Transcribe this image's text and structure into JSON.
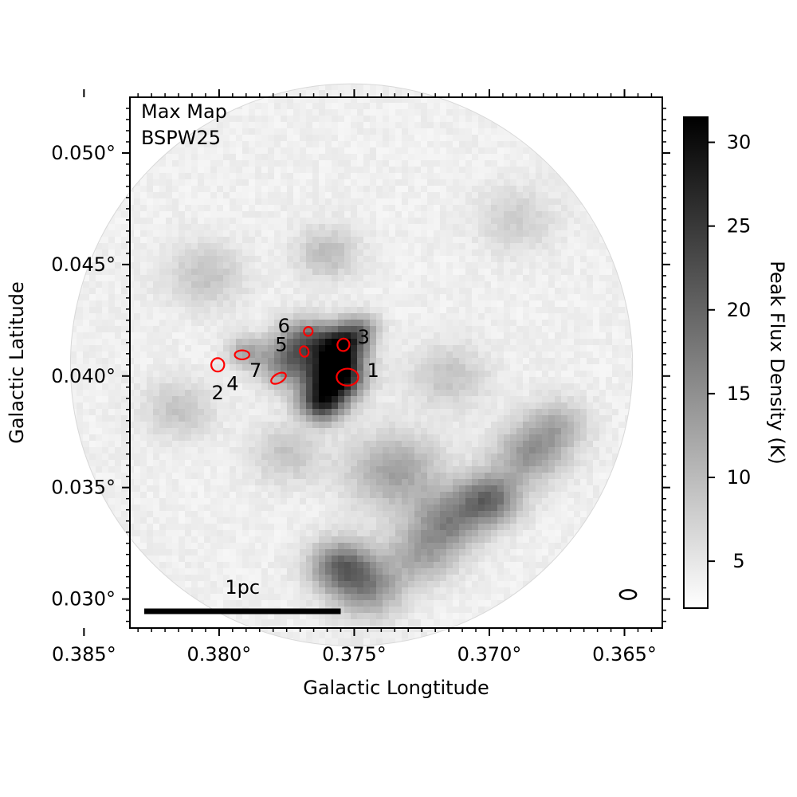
{
  "chart_data": {
    "type": "heatmap",
    "panel_label_line1": "Max Map",
    "panel_label_line2": "BSPW25",
    "xlabel": "Galactic Longtitude",
    "ylabel": "Galactic Latitude",
    "x_direction": "decreasing",
    "xlim": [
      0.3833,
      0.3636
    ],
    "ylim": [
      0.0287,
      0.0525
    ],
    "x_ticks": [
      {
        "value": 0.385,
        "label": "0.385°"
      },
      {
        "value": 0.38,
        "label": "0.380°"
      },
      {
        "value": 0.375,
        "label": "0.375°"
      },
      {
        "value": 0.37,
        "label": "0.370°"
      },
      {
        "value": 0.365,
        "label": "0.365°"
      }
    ],
    "y_ticks": [
      {
        "value": 0.03,
        "label": "0.030°"
      },
      {
        "value": 0.035,
        "label": "0.035°"
      },
      {
        "value": 0.04,
        "label": "0.040°"
      },
      {
        "value": 0.045,
        "label": "0.045°"
      },
      {
        "value": 0.05,
        "label": "0.050°"
      }
    ],
    "minor_tick_step": 0.0005,
    "map_center": {
      "l": 0.3751,
      "b": 0.0405
    },
    "map_radius_deg": 0.0104,
    "colormap": "gray_r",
    "colorbar": {
      "label": "Peak Flux Density (K)",
      "min": 2.2,
      "max": 31.5,
      "ticks": [
        {
          "value": 5,
          "label": "5"
        },
        {
          "value": 10,
          "label": "10"
        },
        {
          "value": 15,
          "label": "15"
        },
        {
          "value": 20,
          "label": "20"
        },
        {
          "value": 25,
          "label": "25"
        },
        {
          "value": 30,
          "label": "30"
        }
      ]
    },
    "emission_peaks": [
      {
        "l": 0.3757,
        "b": 0.04,
        "peak": 30,
        "sigma": 0.0007
      },
      {
        "l": 0.3755,
        "b": 0.0413,
        "peak": 24,
        "sigma": 0.0006
      },
      {
        "l": 0.3762,
        "b": 0.0388,
        "peak": 20,
        "sigma": 0.0006
      },
      {
        "l": 0.3768,
        "b": 0.0416,
        "peak": 14,
        "sigma": 0.0007
      },
      {
        "l": 0.3775,
        "b": 0.0405,
        "peak": 12,
        "sigma": 0.0007
      },
      {
        "l": 0.3748,
        "b": 0.0421,
        "peak": 11,
        "sigma": 0.0005
      },
      {
        "l": 0.379,
        "b": 0.0411,
        "peak": 8,
        "sigma": 0.0005
      },
      {
        "l": 0.3735,
        "b": 0.0357,
        "peak": 9,
        "sigma": 0.0012
      },
      {
        "l": 0.37,
        "b": 0.0345,
        "peak": 15,
        "sigma": 0.0008
      },
      {
        "l": 0.3715,
        "b": 0.0335,
        "peak": 11,
        "sigma": 0.0009
      },
      {
        "l": 0.3685,
        "b": 0.0365,
        "peak": 10,
        "sigma": 0.0009
      },
      {
        "l": 0.3675,
        "b": 0.0378,
        "peak": 7,
        "sigma": 0.0008
      },
      {
        "l": 0.3755,
        "b": 0.0315,
        "peak": 14,
        "sigma": 0.0008
      },
      {
        "l": 0.3745,
        "b": 0.0305,
        "peak": 11,
        "sigma": 0.0009
      },
      {
        "l": 0.3725,
        "b": 0.032,
        "peak": 8,
        "sigma": 0.0009
      },
      {
        "l": 0.376,
        "b": 0.0455,
        "peak": 6,
        "sigma": 0.0008
      },
      {
        "l": 0.3805,
        "b": 0.0445,
        "peak": 5,
        "sigma": 0.001
      },
      {
        "l": 0.3815,
        "b": 0.0385,
        "peak": 5,
        "sigma": 0.0009
      },
      {
        "l": 0.3775,
        "b": 0.0365,
        "peak": 5,
        "sigma": 0.0009
      },
      {
        "l": 0.3715,
        "b": 0.04,
        "peak": 5,
        "sigma": 0.001
      },
      {
        "l": 0.369,
        "b": 0.047,
        "peak": 4,
        "sigma": 0.001
      }
    ],
    "sources": [
      {
        "id": "1",
        "l": 0.37525,
        "b": 0.03995,
        "rl": 0.0004,
        "rb": 0.00038,
        "angle": 0,
        "label": "1",
        "label_l": 0.3743,
        "label_b": 0.04025
      },
      {
        "id": "2",
        "l": 0.38005,
        "b": 0.0405,
        "rl": 0.00024,
        "rb": 0.0003,
        "angle": 0,
        "label": "2",
        "label_l": 0.38005,
        "label_b": 0.03925
      },
      {
        "id": "3",
        "l": 0.3754,
        "b": 0.0414,
        "rl": 0.00022,
        "rb": 0.00028,
        "angle": 20,
        "label": "3",
        "label_l": 0.37465,
        "label_b": 0.04175
      },
      {
        "id": "4",
        "l": 0.37915,
        "b": 0.04095,
        "rl": 0.00027,
        "rb": 0.0002,
        "angle": 0,
        "label": "4",
        "label_l": 0.3795,
        "label_b": 0.03965
      },
      {
        "id": "5",
        "l": 0.37685,
        "b": 0.0411,
        "rl": 0.00016,
        "rb": 0.00024,
        "angle": -15,
        "label": "5",
        "label_l": 0.3777,
        "label_b": 0.0414
      },
      {
        "id": "6",
        "l": 0.3767,
        "b": 0.042,
        "rl": 0.00016,
        "rb": 0.0002,
        "angle": 25,
        "label": "6",
        "label_l": 0.3776,
        "label_b": 0.04225
      },
      {
        "id": "7",
        "l": 0.3778,
        "b": 0.0399,
        "rl": 0.0003,
        "rb": 0.0002,
        "angle": -30,
        "label": "7",
        "label_l": 0.37865,
        "label_b": 0.04025
      }
    ],
    "source_color": "#ff0000",
    "scalebar": {
      "label": "1pc",
      "length_deg": 0.00727
    },
    "beam": {
      "rl": 0.0003,
      "rb": 0.0002,
      "angle": 0
    }
  }
}
